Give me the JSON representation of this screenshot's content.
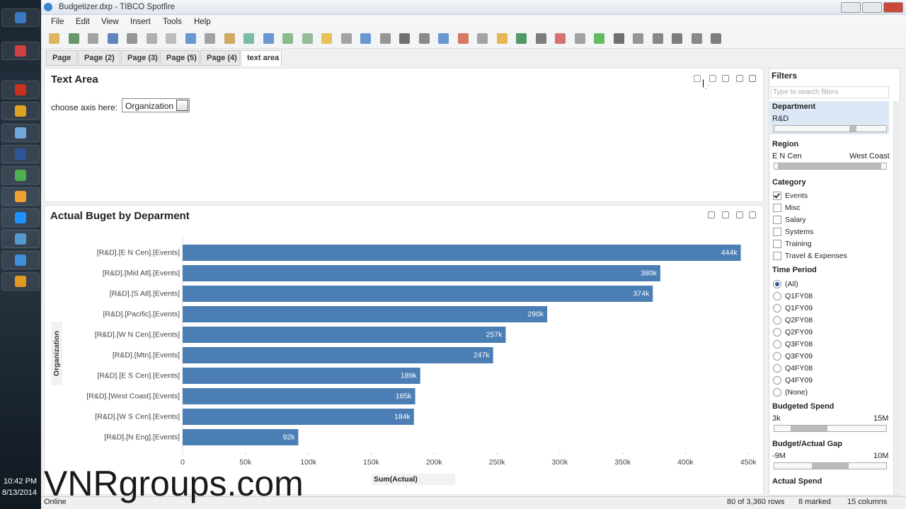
{
  "window": {
    "title": "Budgetizer.dxp - TIBCO Spotfire"
  },
  "menu": [
    "File",
    "Edit",
    "View",
    "Insert",
    "Tools",
    "Help"
  ],
  "tabs": {
    "items": [
      "Page",
      "Page (2)",
      "Page (3)",
      "Page (5)",
      "Page (4)",
      "text area"
    ],
    "active": 5
  },
  "text_area": {
    "title": "Text Area",
    "prompt": "choose axis here:",
    "axis_choice": "Organization"
  },
  "chart_data": {
    "type": "bar",
    "orientation": "horizontal",
    "title": "Actual Buget by Deparment",
    "x_label": "Sum(Actual)",
    "y_label": "Organization",
    "categories": [
      "[R&D].[E N Cen].[Events]",
      "[R&D].[Mid Atl].[Events]",
      "[R&D].[S Atl].[Events]",
      "[R&D].[Pacific].[Events]",
      "[R&D].[W N Cen].[Events]",
      "[R&D].[Mtn].[Events]",
      "[R&D].[E S Cen].[Events]",
      "[R&D].[West Coast].[Events]",
      "[R&D].[W S Cen].[Events]",
      "[R&D].[N Eng].[Events]"
    ],
    "values": [
      444000,
      380000,
      374000,
      290000,
      257000,
      247000,
      189000,
      185000,
      184000,
      92000
    ],
    "value_labels": [
      "444k",
      "380k",
      "374k",
      "290k",
      "257k",
      "247k",
      "189k",
      "185k",
      "184k",
      "92k"
    ],
    "color": "#4a7eb4",
    "xlim": [
      0,
      460000
    ],
    "xticks": [
      0,
      {
        "value": 50000,
        "label": "50k"
      },
      {
        "value": 100000,
        "label": "100k"
      },
      {
        "value": 150000,
        "label": "150k"
      },
      {
        "value": 200000,
        "label": "200k"
      },
      {
        "value": 250000,
        "label": "250k"
      },
      {
        "value": 300000,
        "label": "300k"
      },
      {
        "value": 350000,
        "label": "350k"
      },
      {
        "value": 400000,
        "label": "400k"
      },
      {
        "value": 450000,
        "label": "450k"
      }
    ],
    "grid": false
  },
  "filters": {
    "title": "Filters",
    "search_placeholder": "Type to search filters",
    "department": {
      "label": "Department",
      "value": "R&D"
    },
    "region": {
      "label": "Region",
      "min": "E N Cen",
      "max": "West Coast"
    },
    "category": {
      "label": "Category",
      "items": [
        {
          "label": "Events",
          "checked": true
        },
        {
          "label": "Misc",
          "checked": false
        },
        {
          "label": "Salary",
          "checked": false
        },
        {
          "label": "Systems",
          "checked": false
        },
        {
          "label": "Training",
          "checked": false
        },
        {
          "label": "Travel & Expenses",
          "checked": false
        }
      ]
    },
    "time_period": {
      "label": "Time Period",
      "items": [
        "(All)",
        "Q1FY08",
        "Q1FY09",
        "Q2FY08",
        "Q2FY09",
        "Q3FY08",
        "Q3FY09",
        "Q4FY08",
        "Q4FY09",
        "(None)"
      ],
      "selected": 0
    },
    "budgeted_spend": {
      "label": "Budgeted Spend",
      "min": "3k",
      "max": "15M"
    },
    "gap": {
      "label": "Budget/Actual Gap",
      "min": "-9M",
      "max": "10M"
    },
    "actual_spend": {
      "label": "Actual Spend"
    }
  },
  "status": {
    "state": "Online",
    "rows": "80 of 3,360 rows",
    "marked": "8 marked",
    "columns": "15 columns"
  },
  "clock": {
    "time": "10:42 PM",
    "date": "8/13/2014"
  },
  "watermark": "VNRgroups.com"
}
